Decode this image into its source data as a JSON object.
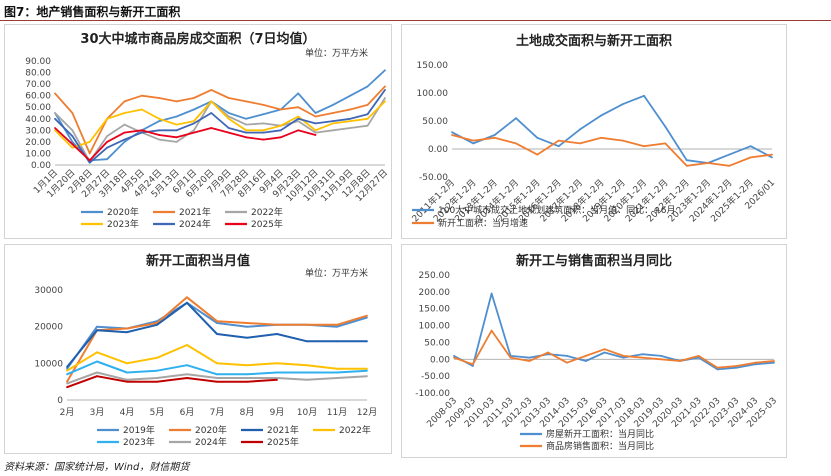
{
  "figure": {
    "title": "图7：地产销售面积与新开工面积",
    "source": "资料来源：国家统计局，Wind，财信期货"
  },
  "chart_data": [
    {
      "type": "line",
      "title": "30大中城市商品房成交面积（7日均值）",
      "unit": "单位：万平方米",
      "ylim": [
        0,
        90
      ],
      "yticks": [
        "0.00",
        "10.00",
        "20.00",
        "30.00",
        "40.00",
        "50.00",
        "60.00",
        "70.00",
        "80.00",
        "90.00"
      ],
      "categories": [
        "1月1日",
        "1月20日",
        "2月8日",
        "2月27日",
        "3月18日",
        "4月5日",
        "4月24日",
        "5月13日",
        "6月1日",
        "6月20日",
        "7月9日",
        "7月28日",
        "8月16日",
        "9月4日",
        "9月23日",
        "10月12日",
        "10月31日",
        "11月19日",
        "12月8日",
        "12月27日"
      ],
      "series": [
        {
          "name": "2020年",
          "color": "#4f8fcf",
          "values": [
            45,
            20,
            4,
            5,
            20,
            30,
            38,
            42,
            48,
            55,
            45,
            40,
            44,
            48,
            62,
            45,
            52,
            60,
            68,
            82
          ]
        },
        {
          "name": "2021年",
          "color": "#ee7d31",
          "values": [
            62,
            45,
            10,
            40,
            55,
            60,
            58,
            55,
            58,
            65,
            58,
            55,
            52,
            48,
            50,
            42,
            45,
            48,
            52,
            68
          ]
        },
        {
          "name": "2022年",
          "color": "#a6a6a6",
          "values": [
            45,
            30,
            3,
            25,
            35,
            28,
            22,
            20,
            30,
            55,
            42,
            35,
            36,
            34,
            38,
            28,
            30,
            32,
            34,
            58
          ]
        },
        {
          "name": "2023年",
          "color": "#ffc000",
          "values": [
            30,
            15,
            20,
            40,
            45,
            48,
            40,
            35,
            38,
            55,
            40,
            30,
            30,
            34,
            42,
            30,
            36,
            38,
            40,
            55
          ]
        },
        {
          "name": "2024年",
          "color": "#3f67b5",
          "values": [
            40,
            25,
            2,
            15,
            22,
            28,
            30,
            30,
            36,
            45,
            32,
            28,
            28,
            30,
            40,
            36,
            38,
            40,
            44,
            65
          ]
        },
        {
          "name": "2025年",
          "color": "#e8001c",
          "values": [
            32,
            18,
            4,
            20,
            28,
            30,
            26,
            24,
            28,
            32,
            28,
            24,
            22,
            24,
            30,
            26,
            null,
            null,
            null,
            null
          ]
        }
      ]
    },
    {
      "type": "line",
      "title": "土地成交面积与新开工面积",
      "ylim": [
        -50,
        150
      ],
      "yticks": [
        "-50.00",
        "0.00",
        "50.00",
        "100.00",
        "150.00"
      ],
      "categories": [
        "2011年1-2月",
        "2012年1-2月",
        "2013年1-2月",
        "2014年1-2月",
        "2015年1-2月",
        "2016年1-2月",
        "2017年1-2月",
        "2018年1-2月",
        "2019年1-2月",
        "2020年1-2月",
        "2021年1-2月",
        "2022年1-2月",
        "2023年1-2月",
        "2024年1-2月",
        "2025年1-2月",
        "2026/01"
      ],
      "series": [
        {
          "name": "100大中城市成交土地规划建筑面积：当月值：同比：+6月",
          "color": "#4f8fcf",
          "values": [
            30,
            10,
            25,
            55,
            20,
            5,
            35,
            60,
            80,
            95,
            40,
            -20,
            -25,
            -10,
            5,
            -15
          ]
        },
        {
          "name": "新开工面积：当月增速",
          "color": "#ee7d31",
          "values": [
            25,
            15,
            20,
            10,
            -10,
            15,
            10,
            20,
            15,
            5,
            10,
            -30,
            -25,
            -30,
            -15,
            -10
          ]
        }
      ]
    },
    {
      "type": "line",
      "title": "新开工面积当月值",
      "unit": "单位：万平方米",
      "ylim": [
        0,
        30000
      ],
      "yticks": [
        "0",
        "10000",
        "20000",
        "30000"
      ],
      "categories": [
        "2月",
        "3月",
        "4月",
        "5月",
        "6月",
        "7月",
        "8月",
        "9月",
        "10月",
        "11月",
        "12月"
      ],
      "series": [
        {
          "name": "2019年",
          "color": "#4f8fcf",
          "values": [
            8500,
            20000,
            19500,
            21500,
            26500,
            21000,
            20000,
            20500,
            20500,
            20000,
            22500
          ]
        },
        {
          "name": "2020年",
          "color": "#ee7d31",
          "values": [
            5000,
            19000,
            19500,
            21000,
            28000,
            21500,
            21000,
            20500,
            20500,
            20500,
            23000
          ]
        },
        {
          "name": "2021年",
          "color": "#1f5fae",
          "values": [
            9000,
            19000,
            18500,
            20500,
            26500,
            18000,
            17000,
            18000,
            16000,
            16000,
            16000
          ]
        },
        {
          "name": "2022年",
          "color": "#ffc000",
          "values": [
            8000,
            13000,
            10000,
            11500,
            15000,
            10000,
            9500,
            10000,
            9500,
            8500,
            8500
          ]
        },
        {
          "name": "2023年",
          "color": "#2fb0ef",
          "values": [
            7000,
            10500,
            7500,
            8000,
            9500,
            7000,
            7000,
            7500,
            7500,
            7500,
            8000
          ]
        },
        {
          "name": "2024年",
          "color": "#a6a6a6",
          "values": [
            4500,
            7500,
            5500,
            6000,
            7000,
            6000,
            6000,
            6000,
            5500,
            6000,
            6500
          ]
        },
        {
          "name": "2025年",
          "color": "#c00000",
          "values": [
            3500,
            6500,
            5000,
            5000,
            6000,
            5000,
            5000,
            5500,
            null,
            null,
            null
          ]
        }
      ]
    },
    {
      "type": "line",
      "title": "新开工与销售面积当月同比",
      "ylim": [
        -100,
        250
      ],
      "yticks": [
        "-100.00",
        "-50.00",
        "0.00",
        "50.00",
        "100.00",
        "150.00",
        "200.00",
        "250.00"
      ],
      "categories": [
        "2008-03",
        "2009-03",
        "2010-03",
        "2011-03",
        "2012-03",
        "2013-03",
        "2014-03",
        "2015-03",
        "2016-03",
        "2017-03",
        "2018-03",
        "2019-03",
        "2020-03",
        "2021-03",
        "2022-03",
        "2023-03",
        "2024-03",
        "2025-03"
      ],
      "series": [
        {
          "name": "房屋新开工面积：当月同比",
          "color": "#4f8fcf",
          "values": [
            10,
            -20,
            195,
            10,
            5,
            15,
            10,
            -5,
            20,
            5,
            15,
            10,
            -5,
            5,
            -30,
            -25,
            -15,
            -10
          ]
        },
        {
          "name": "商品房销售面积：当月同比",
          "color": "#ee7d31",
          "values": [
            5,
            -15,
            85,
            5,
            -5,
            20,
            -10,
            10,
            30,
            10,
            5,
            0,
            -5,
            10,
            -25,
            -20,
            -10,
            -5
          ]
        }
      ]
    }
  ]
}
